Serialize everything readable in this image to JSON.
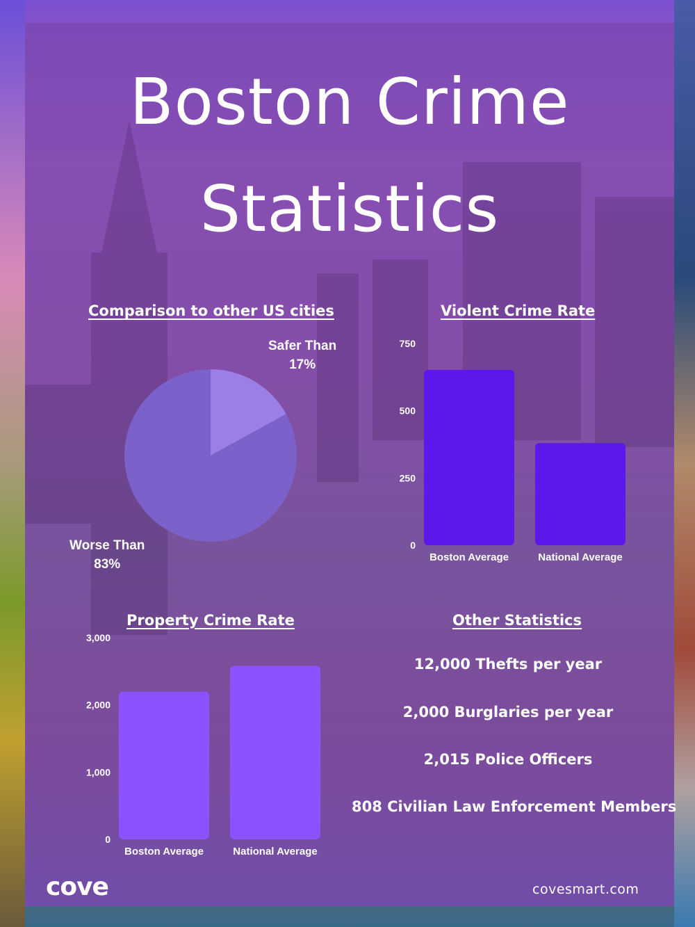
{
  "title_line1": "Boston Crime",
  "title_line2": "Statistics",
  "colors": {
    "pie_main": "#7b61c9",
    "pie_slice": "#9b7fe6",
    "violent_bars": "#5e17eb",
    "property_bars": "#8c52ff"
  },
  "chart_data": [
    {
      "type": "pie",
      "title": "Comparison to other US cities",
      "slices": [
        {
          "label": "Safer Than",
          "value": 17,
          "display": "17%"
        },
        {
          "label": "Worse Than",
          "value": 83,
          "display": "83%"
        }
      ]
    },
    {
      "type": "bar",
      "title": "Violent Crime Rate",
      "categories": [
        "Boston Average",
        "National Average"
      ],
      "values": [
        652,
        380
      ],
      "ylim": [
        0,
        750
      ],
      "yticks": [
        "0",
        "250",
        "500",
        "750"
      ],
      "ytick_values": [
        0,
        250,
        500,
        750
      ]
    },
    {
      "type": "bar",
      "title": "Property Crime Rate",
      "categories": [
        "Boston Average",
        "National Average"
      ],
      "values": [
        2200,
        2580
      ],
      "ylim": [
        0,
        3000
      ],
      "yticks": [
        "0",
        "1,000",
        "2,000",
        "3,000"
      ],
      "ytick_values": [
        0,
        1000,
        2000,
        3000
      ]
    }
  ],
  "other_stats": {
    "title": "Other Statistics",
    "items": [
      "12,000 Thefts per year",
      "2,000 Burglaries per year",
      "2,015 Police Officers",
      "808 Civilian Law Enforcement Members"
    ]
  },
  "footer": {
    "logo": "cove",
    "url": "covesmart.com"
  }
}
